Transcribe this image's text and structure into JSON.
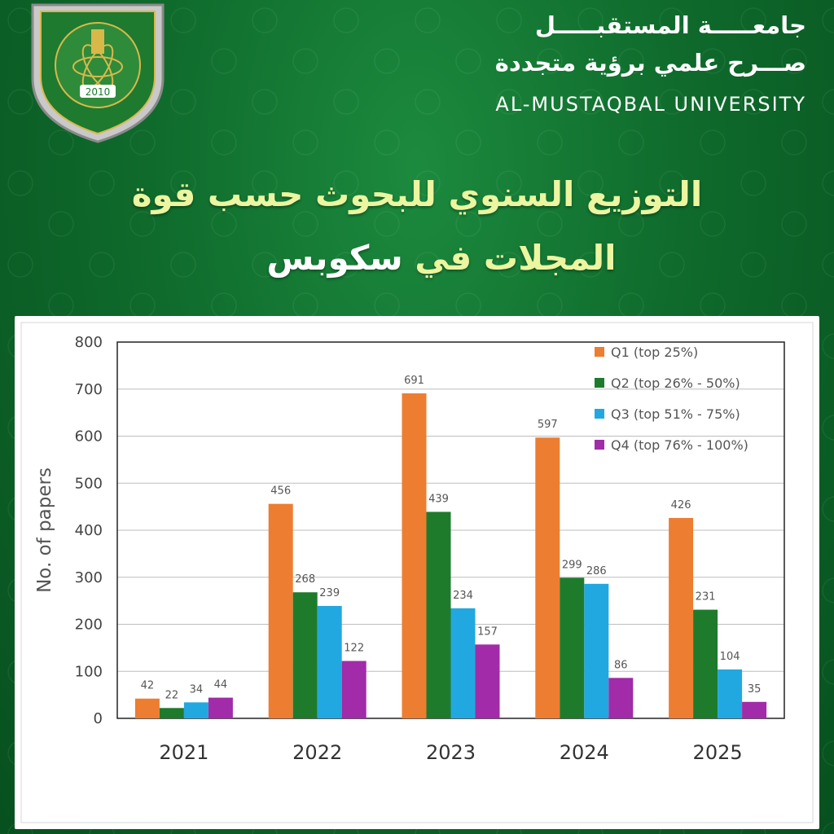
{
  "header": {
    "university_ar": "جامعـــــة المستقبـــــل",
    "slogan_ar": "صـــرح علمي برؤية متجددة",
    "university_en": "AL-MUSTAQBAL UNIVERSITY",
    "logo_year": "2010"
  },
  "title": {
    "line1": "التوزيع السنوي للبحوث حسب قوة",
    "line2_highlight": "المجلات في",
    "line2_white": "سكوبس"
  },
  "colors": {
    "background": "#0f6b2c",
    "title_text": "#ecf5a0",
    "q1": "#ED7D31",
    "q2": "#1E7B2C",
    "q3": "#22A8E0",
    "q4": "#A12BA8"
  },
  "chart_data": {
    "type": "bar",
    "categories": [
      "2021",
      "2022",
      "2023",
      "2024",
      "2025"
    ],
    "series": [
      {
        "name": "Q1 (top 25%)",
        "values": [
          42,
          456,
          691,
          597,
          426
        ],
        "color": "#ED7D31"
      },
      {
        "name": "Q2 (top 26% - 50%)",
        "values": [
          22,
          268,
          439,
          299,
          231
        ],
        "color": "#1E7B2C"
      },
      {
        "name": "Q3 (top 51% - 75%)",
        "values": [
          34,
          239,
          234,
          286,
          104
        ],
        "color": "#22A8E0"
      },
      {
        "name": "Q4 (top 76% - 100%)",
        "values": [
          44,
          122,
          157,
          86,
          35
        ],
        "color": "#A12BA8"
      }
    ],
    "ylabel": "No. of papers",
    "xlabel": "",
    "ylim": [
      0,
      800
    ],
    "yticks": [
      0,
      100,
      200,
      300,
      400,
      500,
      600,
      700,
      800
    ],
    "grid": true,
    "legend_position": "top-right",
    "data_labels": true
  }
}
